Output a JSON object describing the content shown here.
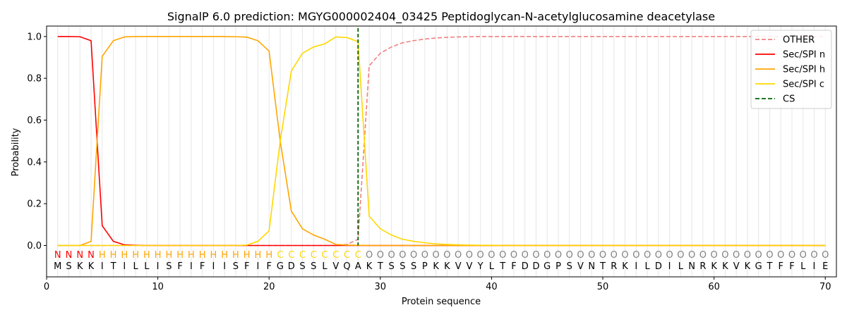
{
  "chart_data": {
    "type": "line",
    "title": "SignalP 6.0 prediction: MGYG000002404_03425 Peptidoglycan-N-acetylglucosamine deacetylase",
    "xlabel": "Protein sequence",
    "ylabel": "Probability",
    "xlim": [
      0,
      71
    ],
    "ylim": [
      -0.15,
      1.05
    ],
    "x_ticks": [
      0,
      10,
      20,
      30,
      40,
      50,
      60,
      70
    ],
    "y_ticks": [
      0.0,
      0.2,
      0.4,
      0.6,
      0.8,
      1.0
    ],
    "x_tick_labels": [
      "0",
      "10",
      "20",
      "30",
      "40",
      "50",
      "60",
      "70"
    ],
    "y_tick_labels": [
      "0.0",
      "0.2",
      "0.4",
      "0.6",
      "0.8",
      "1.0"
    ],
    "grid": "vertical lines at each residue",
    "legend_position": "top-right",
    "sequence": [
      "M",
      "S",
      "K",
      "K",
      "I",
      "T",
      "I",
      "L",
      "L",
      "I",
      "S",
      "F",
      "I",
      "F",
      "I",
      "I",
      "S",
      "F",
      "I",
      "F",
      "G",
      "D",
      "S",
      "S",
      "L",
      "V",
      "Q",
      "A",
      "K",
      "T",
      "S",
      "S",
      "S",
      "P",
      "K",
      "K",
      "V",
      "V",
      "Y",
      "L",
      "T",
      "F",
      "D",
      "D",
      "G",
      "P",
      "S",
      "V",
      "N",
      "T",
      "R",
      "K",
      "I",
      "L",
      "D",
      "I",
      "L",
      "N",
      "R",
      "K",
      "K",
      "V",
      "K",
      "G",
      "T",
      "F",
      "F",
      "L",
      "I",
      "E"
    ],
    "region_labels": [
      "N",
      "N",
      "N",
      "N",
      "H",
      "H",
      "H",
      "H",
      "H",
      "H",
      "H",
      "H",
      "H",
      "H",
      "H",
      "H",
      "H",
      "H",
      "H",
      "H",
      "C",
      "C",
      "C",
      "C",
      "C",
      "C",
      "C",
      "C",
      "O",
      "O",
      "O",
      "O",
      "O",
      "O",
      "O",
      "O",
      "O",
      "O",
      "O",
      "O",
      "O",
      "O",
      "O",
      "O",
      "O",
      "O",
      "O",
      "O",
      "O",
      "O",
      "O",
      "O",
      "O",
      "O",
      "O",
      "O",
      "O",
      "O",
      "O",
      "O",
      "O",
      "O",
      "O",
      "O",
      "O",
      "O",
      "O",
      "O",
      "O",
      "O"
    ],
    "region_colors": {
      "N": "#ff0000",
      "H": "#ffa500",
      "C": "#ffd700",
      "O": "#808080"
    },
    "cleavage_site": 28,
    "series": [
      {
        "name": "OTHER",
        "color": "#f08080",
        "style": "dashed",
        "values": [
          0,
          0,
          0,
          0,
          0,
          0,
          0,
          0,
          0,
          0,
          0,
          0,
          0,
          0,
          0,
          0,
          0,
          0,
          0,
          0,
          0,
          0,
          0,
          0,
          0,
          0,
          0.005,
          0.03,
          0.86,
          0.92,
          0.95,
          0.97,
          0.98,
          0.988,
          0.993,
          0.996,
          0.998,
          0.999,
          1,
          1,
          1,
          1,
          1,
          1,
          1,
          1,
          1,
          1,
          1,
          1,
          1,
          1,
          1,
          1,
          1,
          1,
          1,
          1,
          1,
          1,
          1,
          1,
          1,
          1,
          1,
          1,
          1,
          1,
          1,
          1
        ]
      },
      {
        "name": "Sec/SPI n",
        "color": "#ff0000",
        "style": "solid",
        "values": [
          1.0,
          1.0,
          0.999,
          0.98,
          0.095,
          0.02,
          0.003,
          0.001,
          0,
          0,
          0,
          0,
          0,
          0,
          0,
          0,
          0,
          0,
          0,
          0,
          0,
          0,
          0,
          0,
          0,
          0,
          0,
          0,
          0,
          0,
          0,
          0,
          0,
          0,
          0,
          0,
          0,
          0,
          0,
          0,
          0,
          0,
          0,
          0,
          0,
          0,
          0,
          0,
          0,
          0,
          0,
          0,
          0,
          0,
          0,
          0,
          0,
          0,
          0,
          0,
          0,
          0,
          0,
          0,
          0,
          0,
          0,
          0,
          0,
          0
        ]
      },
      {
        "name": "Sec/SPI h",
        "color": "#ffa500",
        "style": "solid",
        "values": [
          0,
          0,
          0,
          0.02,
          0.905,
          0.98,
          0.998,
          1.0,
          1.0,
          1.0,
          1.0,
          1.0,
          1.0,
          1.0,
          1.0,
          1.0,
          0.999,
          0.997,
          0.98,
          0.93,
          0.5,
          0.165,
          0.08,
          0.05,
          0.03,
          0.005,
          0.002,
          0.001,
          0,
          0,
          0,
          0,
          0,
          0,
          0,
          0,
          0,
          0,
          0,
          0,
          0,
          0,
          0,
          0,
          0,
          0,
          0,
          0,
          0,
          0,
          0,
          0,
          0,
          0,
          0,
          0,
          0,
          0,
          0,
          0,
          0,
          0,
          0,
          0,
          0,
          0,
          0,
          0,
          0,
          0
        ]
      },
      {
        "name": "Sec/SPI c",
        "color": "#ffd700",
        "style": "solid",
        "values": [
          0,
          0,
          0,
          0,
          0,
          0,
          0,
          0,
          0,
          0,
          0,
          0,
          0,
          0,
          0,
          0,
          0,
          0.002,
          0.02,
          0.07,
          0.5,
          0.835,
          0.92,
          0.95,
          0.965,
          0.998,
          0.995,
          0.975,
          0.14,
          0.08,
          0.05,
          0.03,
          0.02,
          0.013,
          0.008,
          0.005,
          0.003,
          0.002,
          0.001,
          0.001,
          0,
          0,
          0,
          0,
          0,
          0,
          0,
          0,
          0,
          0,
          0,
          0,
          0,
          0,
          0,
          0,
          0,
          0,
          0,
          0,
          0,
          0,
          0,
          0,
          0,
          0,
          0,
          0,
          0,
          0
        ]
      },
      {
        "name": "CS",
        "color": "#006400",
        "style": "dashed",
        "values": []
      }
    ]
  }
}
